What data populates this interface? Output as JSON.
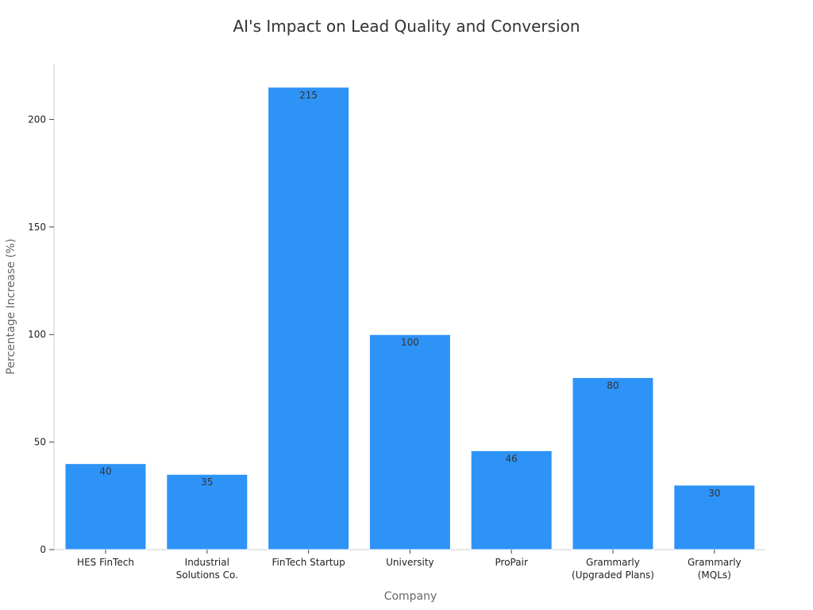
{
  "chart_data": {
    "type": "bar",
    "title": "AI's Impact on Lead Quality and Conversion",
    "xlabel": "Company",
    "ylabel": "Percentage Increase (%)",
    "categories": [
      [
        "HES FinTech"
      ],
      [
        "Industrial",
        "Solutions Co."
      ],
      [
        "FinTech Startup"
      ],
      [
        "University"
      ],
      [
        "ProPair"
      ],
      [
        "Grammarly",
        "(Upgraded Plans)"
      ],
      [
        "Grammarly",
        "(MQLs)"
      ]
    ],
    "values": [
      40,
      35,
      215,
      100,
      46,
      80,
      30
    ],
    "data_labels": [
      "40",
      "35",
      "215",
      "100",
      "46",
      "80",
      "30"
    ],
    "ylim": [
      0,
      226
    ],
    "yticks": [
      0,
      50,
      100,
      150,
      200
    ],
    "grid": false,
    "legend": "none",
    "bar_color": "#2e93f7"
  }
}
